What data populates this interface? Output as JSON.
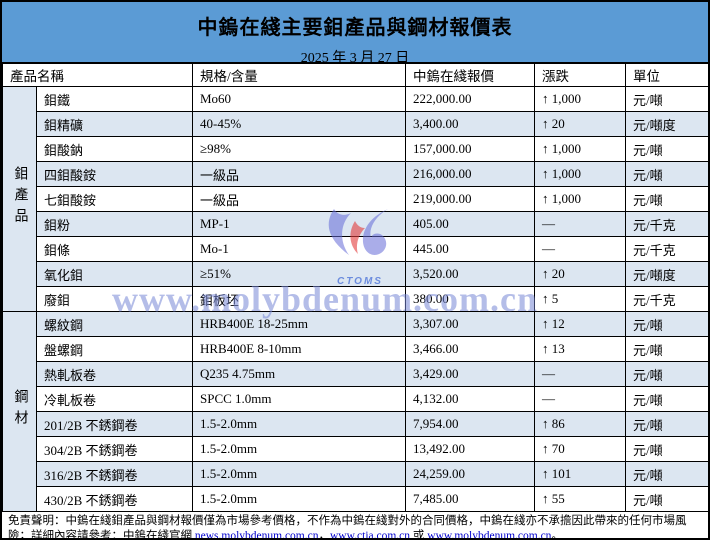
{
  "title": "中鎢在綫主要鉬產品與鋼材報價表",
  "date": "2025 年 3 月 27 日",
  "columns": {
    "name": "產品名稱",
    "spec": "規格/含量",
    "price": "中鎢在綫報價",
    "change": "漲跌",
    "unit": "單位"
  },
  "table": {
    "groups": [
      {
        "id": "molybdenum-products",
        "label": "鉬產品",
        "rows": [
          {
            "name": "鉬鐵",
            "spec": "Mo60",
            "price": "222,000.00",
            "change": "↑ 1,000",
            "unit": "元/噸"
          },
          {
            "name": "鉬精礦",
            "spec": "40-45%",
            "price": "3,400.00",
            "change": "↑ 20",
            "unit": "元/噸度"
          },
          {
            "name": "鉬酸鈉",
            "spec": "≥98%",
            "price": "157,000.00",
            "change": "↑ 1,000",
            "unit": "元/噸"
          },
          {
            "name": "四鉬酸銨",
            "spec": "一級品",
            "price": "216,000.00",
            "change": "↑ 1,000",
            "unit": "元/噸"
          },
          {
            "name": "七鉬酸銨",
            "spec": "一級品",
            "price": "219,000.00",
            "change": "↑ 1,000",
            "unit": "元/噸"
          },
          {
            "name": "鉬粉",
            "spec": "MP-1",
            "price": "405.00",
            "change": "—",
            "unit": "元/千克"
          },
          {
            "name": "鉬條",
            "spec": "Mo-1",
            "price": "445.00",
            "change": "—",
            "unit": "元/千克"
          },
          {
            "name": "氧化鉬",
            "spec": "≥51%",
            "price": "3,520.00",
            "change": "↑ 20",
            "unit": "元/噸度"
          },
          {
            "name": "廢鉬",
            "spec": "鉬板坯",
            "price": "380.00",
            "change": "↑ 5",
            "unit": "元/千克"
          }
        ]
      },
      {
        "id": "steel-materials",
        "label": "鋼材",
        "rows": [
          {
            "name": "螺紋鋼",
            "spec": "HRB400E 18-25mm",
            "price": "3,307.00",
            "change": "↑ 12",
            "unit": "元/噸"
          },
          {
            "name": "盤螺鋼",
            "spec": "HRB400E 8-10mm",
            "price": "3,466.00",
            "change": "↑ 13",
            "unit": "元/噸"
          },
          {
            "name": "熱軋板卷",
            "spec": "Q235 4.75mm",
            "price": "3,429.00",
            "change": "—",
            "unit": "元/噸"
          },
          {
            "name": "冷軋板卷",
            "spec": "SPCC 1.0mm",
            "price": "4,132.00",
            "change": "—",
            "unit": "元/噸"
          },
          {
            "name": "201/2B 不銹鋼卷",
            "spec": "1.5-2.0mm",
            "price": "7,954.00",
            "change": "↑ 86",
            "unit": "元/噸"
          },
          {
            "name": "304/2B 不銹鋼卷",
            "spec": "1.5-2.0mm",
            "price": "13,492.00",
            "change": "↑ 70",
            "unit": "元/噸"
          },
          {
            "name": "316/2B 不銹鋼卷",
            "spec": "1.5-2.0mm",
            "price": "24,259.00",
            "change": "↑ 101",
            "unit": "元/噸"
          },
          {
            "name": "430/2B 不銹鋼卷",
            "spec": "1.5-2.0mm",
            "price": "7,485.00",
            "change": "↑ 55",
            "unit": "元/噸"
          }
        ]
      }
    ]
  },
  "watermark": {
    "logo_text": "CTOMS",
    "url_text": "www.molybdenum.com.cn"
  },
  "footer": {
    "text_before_links": "免責聲明：中鎢在綫鉬產品與鋼材報價僅為市場參考價格，不作為中鎢在綫對外的合同價格，中鎢在綫亦不承擔因此帶來的任何市場風險；詳細內容請參考：中鎢在綫官網 ",
    "link1": "news.molybdenum.com.cn",
    "sep1": "，",
    "link2": "www.ctia.com.cn",
    "sep2": " 或 ",
    "link3": "www.molybdenum.com.cn",
    "suffix": "。"
  },
  "colors": {
    "header_blue": "#5b9bd5",
    "row_stripe": "#dce6f1",
    "link_blue": "#0000cc",
    "watermark_blue": "#7686d6",
    "logo_blue": "#5a5fd0",
    "logo_red": "#e23a3a",
    "border": "#000000"
  }
}
